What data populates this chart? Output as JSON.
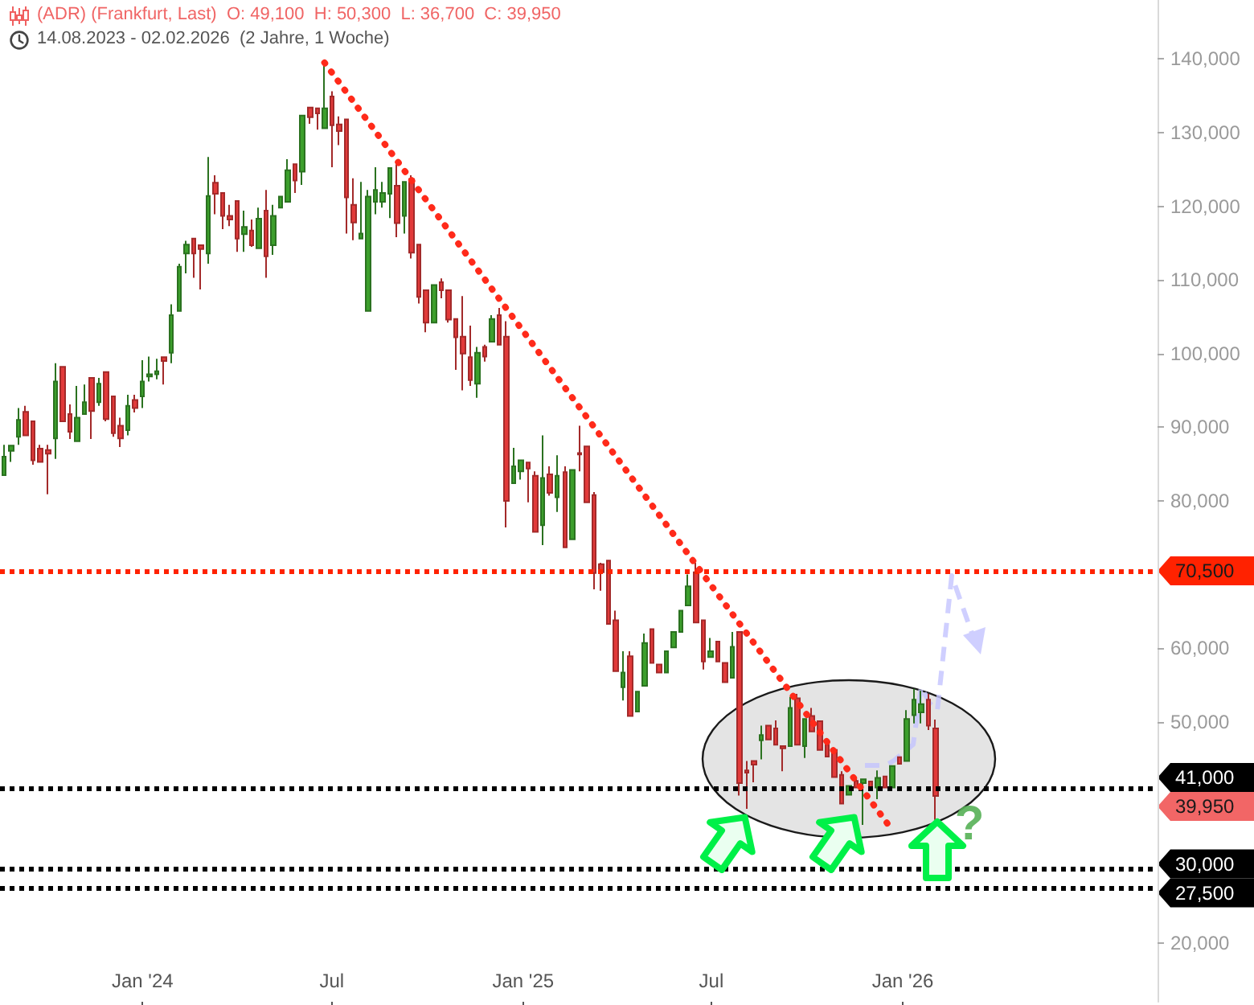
{
  "chart_data": {
    "type": "candlestick",
    "title": "(ADR) (Frankfurt, Last)  O: 49,100  H: 50,300  L: 36,700  C: 39,950",
    "subtitle": "14.08.2023 - 02.02.2026  (2 Jahre, 1 Woche)",
    "x": [
      "2023-08-21",
      "2023-08-28",
      "2023-09-04",
      "2023-09-11",
      "2023-09-18",
      "2023-09-25",
      "2023-10-02",
      "2023-10-09",
      "2023-10-16",
      "2023-10-23",
      "2023-10-30",
      "2023-11-06",
      "2023-11-13",
      "2023-11-20",
      "2023-11-27",
      "2023-12-04",
      "2023-12-11",
      "2023-12-18",
      "2023-12-25",
      "2024-01-01",
      "2024-01-08",
      "2024-01-15",
      "2024-01-22",
      "2024-01-29",
      "2024-02-05",
      "2024-02-12",
      "2024-02-19",
      "2024-02-26",
      "2024-03-04",
      "2024-03-11",
      "2024-03-18",
      "2024-03-25",
      "2024-04-01",
      "2024-04-08",
      "2024-04-15",
      "2024-04-22",
      "2024-04-29",
      "2024-05-06",
      "2024-05-13",
      "2024-05-20",
      "2024-05-27",
      "2024-06-03",
      "2024-06-10",
      "2024-06-17",
      "2024-06-24",
      "2024-07-01",
      "2024-07-08",
      "2024-07-15",
      "2024-07-22",
      "2024-07-29",
      "2024-08-05",
      "2024-08-12",
      "2024-08-19",
      "2024-08-26",
      "2024-09-02",
      "2024-09-09",
      "2024-09-16",
      "2024-09-23",
      "2024-09-30",
      "2024-10-07",
      "2024-10-14",
      "2024-10-21",
      "2024-10-28",
      "2024-11-04",
      "2024-11-11",
      "2024-11-18",
      "2024-11-25",
      "2024-12-02",
      "2024-12-09",
      "2024-12-16",
      "2024-12-23",
      "2024-12-30",
      "2025-01-06",
      "2025-01-13",
      "2025-01-20",
      "2025-01-27",
      "2025-02-03",
      "2025-02-10",
      "2025-02-17",
      "2025-02-24",
      "2025-03-03",
      "2025-03-10",
      "2025-03-17",
      "2025-03-24",
      "2025-03-31",
      "2025-04-07",
      "2025-04-14",
      "2025-04-21",
      "2025-04-28",
      "2025-05-05",
      "2025-05-12",
      "2025-05-19",
      "2025-05-26",
      "2025-06-02",
      "2025-06-09",
      "2025-06-16",
      "2025-06-23",
      "2025-06-30",
      "2025-07-07",
      "2025-07-14",
      "2025-07-21",
      "2025-07-28",
      "2025-08-04",
      "2025-08-11",
      "2025-08-18",
      "2025-08-25",
      "2025-09-01",
      "2025-09-08",
      "2025-09-15",
      "2025-09-22",
      "2025-09-29",
      "2025-10-06",
      "2025-10-13",
      "2025-10-20",
      "2025-10-27",
      "2025-11-03",
      "2025-11-10",
      "2025-11-17",
      "2025-11-24",
      "2025-12-01",
      "2025-12-08",
      "2025-12-15",
      "2025-12-22",
      "2025-12-29",
      "2026-01-05",
      "2026-01-12",
      "2026-01-19",
      "2026-01-26",
      "2026-02-02"
    ],
    "ohlc": [
      [
        83500,
        87600,
        83500,
        86000
      ],
      [
        86800,
        87600,
        85300,
        87500
      ],
      [
        88700,
        92600,
        87600,
        91000
      ],
      [
        92100,
        92900,
        88800,
        88900
      ],
      [
        90800,
        90800,
        84900,
        85500
      ],
      [
        87100,
        87600,
        85300,
        85300
      ],
      [
        86900,
        87600,
        80900,
        86400
      ],
      [
        88500,
        98700,
        85700,
        96200
      ],
      [
        98200,
        98200,
        90700,
        90800
      ],
      [
        91800,
        93100,
        88400,
        89400
      ],
      [
        88100,
        95600,
        88100,
        91300
      ],
      [
        91800,
        95800,
        91800,
        93400
      ],
      [
        96700,
        96700,
        88400,
        92200
      ],
      [
        93400,
        96700,
        92900,
        95900
      ],
      [
        97500,
        97500,
        90800,
        91100
      ],
      [
        94200,
        94200,
        88700,
        89200
      ],
      [
        90200,
        91300,
        87300,
        88500
      ],
      [
        89600,
        94400,
        88900,
        92900
      ],
      [
        93700,
        94400,
        92000,
        92600
      ],
      [
        94200,
        99100,
        92600,
        96200
      ],
      [
        96900,
        99600,
        96200,
        97200
      ],
      [
        97200,
        99300,
        96500,
        97600
      ],
      [
        99500,
        99500,
        95800,
        99000
      ],
      [
        100100,
        106700,
        98700,
        105200
      ],
      [
        105800,
        112200,
        105800,
        111800
      ],
      [
        113600,
        115300,
        110900,
        114800
      ],
      [
        115600,
        115600,
        110300,
        113600
      ],
      [
        114700,
        114700,
        108700,
        114200
      ],
      [
        113600,
        126700,
        112200,
        121400
      ],
      [
        123200,
        124200,
        118900,
        121700
      ],
      [
        121800,
        121800,
        116900,
        118700
      ],
      [
        118700,
        120200,
        117300,
        118200
      ],
      [
        120700,
        120700,
        113800,
        115600
      ],
      [
        116200,
        119400,
        113800,
        117200
      ],
      [
        116700,
        118200,
        114500,
        114700
      ],
      [
        114300,
        119800,
        114300,
        118300
      ],
      [
        119400,
        122200,
        110300,
        113200
      ],
      [
        114700,
        120200,
        113400,
        118700
      ],
      [
        119800,
        121300,
        119800,
        121300
      ],
      [
        120600,
        126400,
        120600,
        124900
      ],
      [
        125700,
        125700,
        121800,
        123500
      ],
      [
        124700,
        132300,
        122900,
        132300
      ],
      [
        133400,
        133400,
        131200,
        132100
      ],
      [
        133300,
        133300,
        130400,
        132600
      ],
      [
        130600,
        139500,
        130600,
        133300
      ],
      [
        134900,
        135600,
        125300,
        131000
      ],
      [
        131100,
        132200,
        128300,
        130200
      ],
      [
        131800,
        131800,
        116300,
        121200
      ],
      [
        120200,
        123800,
        115400,
        117800
      ],
      [
        115600,
        123300,
        115600,
        116300
      ],
      [
        105800,
        122200,
        105800,
        121300
      ],
      [
        120600,
        125300,
        118900,
        122200
      ],
      [
        120600,
        123300,
        119800,
        121800
      ],
      [
        121700,
        125200,
        118400,
        125200
      ],
      [
        122800,
        125700,
        115800,
        117700
      ],
      [
        118700,
        123300,
        116300,
        123300
      ],
      [
        123700,
        124200,
        112900,
        113700
      ],
      [
        114800,
        114800,
        106800,
        107700
      ],
      [
        108600,
        108600,
        102900,
        104200
      ],
      [
        104200,
        109300,
        104200,
        109300
      ],
      [
        109700,
        110200,
        107500,
        108600
      ],
      [
        108600,
        108600,
        104200,
        104600
      ],
      [
        104700,
        104700,
        97800,
        102200
      ],
      [
        102300,
        107800,
        95000,
        100000
      ],
      [
        99500,
        103800,
        95600,
        96400
      ],
      [
        95900,
        100900,
        94000,
        100100
      ],
      [
        100900,
        101200,
        98900,
        99600
      ],
      [
        101600,
        105200,
        101600,
        104700
      ],
      [
        105200,
        106200,
        101200,
        101200
      ],
      [
        102300,
        104400,
        76400,
        80000
      ],
      [
        82400,
        87200,
        82400,
        84700
      ],
      [
        84000,
        85500,
        82900,
        85500
      ],
      [
        85200,
        85200,
        79800,
        84400
      ],
      [
        83400,
        84000,
        75800,
        75800
      ],
      [
        76700,
        88900,
        74000,
        83100
      ],
      [
        83600,
        84700,
        80700,
        81100
      ],
      [
        80500,
        86200,
        78500,
        83400
      ],
      [
        83900,
        84700,
        73700,
        73700
      ],
      [
        74800,
        84200,
        74800,
        84200
      ],
      [
        86500,
        90200,
        84000,
        86300
      ],
      [
        87400,
        87400,
        79800,
        79800
      ],
      [
        80800,
        81200,
        68000,
        70200
      ],
      [
        71400,
        71600,
        67800,
        70300
      ],
      [
        71900,
        71900,
        63300,
        63300
      ],
      [
        63800,
        65100,
        56900,
        56900
      ],
      [
        54700,
        59600,
        52900,
        56700
      ],
      [
        58900,
        59600,
        50800,
        50800
      ],
      [
        51400,
        54100,
        51400,
        54100
      ],
      [
        54900,
        62000,
        54900,
        60700
      ],
      [
        62600,
        62600,
        58000,
        58000
      ],
      [
        57800,
        57800,
        56700,
        56700
      ],
      [
        56700,
        59600,
        56700,
        59600
      ],
      [
        60100,
        62200,
        60100,
        62200
      ],
      [
        62200,
        65100,
        62200,
        65100
      ],
      [
        65800,
        70000,
        65800,
        68400
      ],
      [
        70300,
        71600,
        63500,
        63500
      ],
      [
        63800,
        63800,
        57100,
        58200
      ],
      [
        58800,
        61400,
        58800,
        59600
      ],
      [
        60900,
        60900,
        58200,
        58200
      ],
      [
        58000,
        58000,
        55400,
        55400
      ],
      [
        56000,
        62200,
        56000,
        60200
      ],
      [
        62200,
        62200,
        40000,
        41700
      ],
      [
        43400,
        44700,
        38200,
        43100
      ],
      [
        44700,
        44700,
        41800,
        44200
      ],
      [
        47500,
        49500,
        44900,
        48200
      ],
      [
        49500,
        49500,
        47600,
        47600
      ],
      [
        49100,
        50200,
        46900,
        46900
      ],
      [
        46700,
        46700,
        43300,
        46400
      ],
      [
        46700,
        53400,
        46700,
        51900
      ],
      [
        53200,
        53800,
        46900,
        46900
      ],
      [
        46700,
        50400,
        45100,
        50400
      ],
      [
        50800,
        51900,
        48700,
        48700
      ],
      [
        50100,
        50100,
        46200,
        46200
      ],
      [
        46900,
        46900,
        45300,
        45300
      ],
      [
        46200,
        46200,
        42500,
        42500
      ],
      [
        42800,
        43300,
        38900,
        38900
      ],
      [
        40100,
        41300,
        40100,
        41300
      ],
      [
        42000,
        42500,
        41100,
        41100
      ],
      [
        41700,
        42200,
        36000,
        42200
      ],
      [
        41900,
        41900,
        41100,
        41100
      ],
      [
        41100,
        43400,
        39500,
        42400
      ],
      [
        42600,
        42600,
        41100,
        41100
      ],
      [
        41100,
        44000,
        41100,
        44000
      ],
      [
        45200,
        45200,
        44300,
        44300
      ],
      [
        44700,
        51600,
        44700,
        50400
      ],
      [
        50900,
        54500,
        49800,
        53000
      ],
      [
        51300,
        54200,
        49800,
        52400
      ],
      [
        53000,
        53800,
        48900,
        49500
      ],
      [
        49100,
        50300,
        36700,
        39950
      ]
    ],
    "colors": [
      "#3c9f2c",
      "#3c9f2c",
      "#3c9f2c",
      "#e23a3a",
      "#e23a3a",
      "#e23a3a",
      "#e23a3a",
      "#3c9f2c",
      "#e23a3a",
      "#e23a3a",
      "#3c9f2c",
      "#3c9f2c",
      "#e23a3a",
      "#3c9f2c",
      "#e23a3a",
      "#e23a3a",
      "#e23a3a",
      "#3c9f2c",
      "#e23a3a",
      "#3c9f2c",
      "#3c9f2c",
      "#3c9f2c",
      "#e23a3a",
      "#3c9f2c",
      "#3c9f2c",
      "#3c9f2c",
      "#e23a3a",
      "#e23a3a",
      "#3c9f2c",
      "#e23a3a",
      "#e23a3a",
      "#e23a3a",
      "#e23a3a",
      "#3c9f2c",
      "#e23a3a",
      "#3c9f2c",
      "#e23a3a",
      "#3c9f2c",
      "#3c9f2c",
      "#3c9f2c",
      "#e23a3a",
      "#3c9f2c",
      "#e23a3a",
      "#e23a3a",
      "#3c9f2c",
      "#e23a3a",
      "#e23a3a",
      "#e23a3a",
      "#e23a3a",
      "#3c9f2c",
      "#3c9f2c",
      "#3c9f2c",
      "#3c9f2c",
      "#3c9f2c",
      "#e23a3a",
      "#3c9f2c",
      "#e23a3a",
      "#e23a3a",
      "#e23a3a",
      "#3c9f2c",
      "#e23a3a",
      "#e23a3a",
      "#e23a3a",
      "#e23a3a",
      "#e23a3a",
      "#3c9f2c",
      "#e23a3a",
      "#3c9f2c",
      "#e23a3a",
      "#e23a3a",
      "#3c9f2c",
      "#3c9f2c",
      "#e23a3a",
      "#e23a3a",
      "#3c9f2c",
      "#e23a3a",
      "#3c9f2c",
      "#e23a3a",
      "#3c9f2c",
      "#e23a3a",
      "#e23a3a",
      "#e23a3a",
      "#e23a3a",
      "#e23a3a",
      "#e23a3a",
      "#3c9f2c",
      "#e23a3a",
      "#3c9f2c",
      "#3c9f2c",
      "#e23a3a",
      "#e23a3a",
      "#3c9f2c",
      "#3c9f2c",
      "#3c9f2c",
      "#3c9f2c",
      "#e23a3a",
      "#e23a3a",
      "#3c9f2c",
      "#e23a3a",
      "#e23a3a",
      "#3c9f2c",
      "#e23a3a",
      "#e23a3a",
      "#e23a3a",
      "#3c9f2c",
      "#e23a3a",
      "#e23a3a",
      "#e23a3a",
      "#3c9f2c",
      "#e23a3a",
      "#3c9f2c",
      "#e23a3a",
      "#e23a3a",
      "#e23a3a",
      "#e23a3a",
      "#e23a3a",
      "#3c9f2c",
      "#e23a3a",
      "#3c9f2c",
      "#e23a3a",
      "#3c9f2c",
      "#e23a3a",
      "#3c9f2c",
      "#e23a3a",
      "#3c9f2c",
      "#3c9f2c",
      "#3c9f2c",
      "#e23a3a",
      "#e23a3a"
    ],
    "series": [
      {
        "type": "line",
        "x": [
          "2024-06-24",
          "2025-12-22"
        ],
        "values": [
          139500,
          35300
        ],
        "color": "#ff2a1a",
        "line_style": "dotted"
      }
    ],
    "xlim": [
      "2023-08-17",
      "2026-09-03"
    ],
    "xticks": [
      {
        "value": "2024-01-01",
        "label": "Jan '24"
      },
      {
        "value": "2024-07-01",
        "label": "Jul"
      },
      {
        "value": "2025-01-01",
        "label": "Jan '25"
      },
      {
        "value": "2025-07-01",
        "label": "Jul"
      },
      {
        "value": "2026-01-01",
        "label": "Jan '26"
      }
    ],
    "ylim": [
      12000,
      148000
    ],
    "yticks": [
      {
        "value": 20000,
        "label": "20,000"
      },
      {
        "value": 50000,
        "label": "50,000"
      },
      {
        "value": 60000,
        "label": "60,000"
      },
      {
        "value": 80000,
        "label": "80,000"
      },
      {
        "value": 90000,
        "label": "90,000"
      },
      {
        "value": 100000,
        "label": "100,000"
      },
      {
        "value": 110000,
        "label": "110,000"
      },
      {
        "value": 120000,
        "label": "120,000"
      },
      {
        "value": 130000,
        "label": "130,000"
      },
      {
        "value": 140000,
        "label": "140,000"
      }
    ],
    "ref_lines": [
      {
        "axis": "y",
        "value": 70500,
        "label": "70,500",
        "color": "#ff2200",
        "line_style": "dotted"
      },
      {
        "axis": "y",
        "value": 41000,
        "label": "41,000",
        "color": "#000000",
        "line_style": "dotted"
      },
      {
        "axis": "y",
        "value": 30000,
        "label": "30,000",
        "color": "#000000",
        "line_style": "dotted"
      },
      {
        "axis": "y",
        "value": 27500,
        "label": "27,500",
        "color": "#000000",
        "line_style": "dotted"
      }
    ],
    "annotations": [
      "39,950",
      "?"
    ]
  }
}
